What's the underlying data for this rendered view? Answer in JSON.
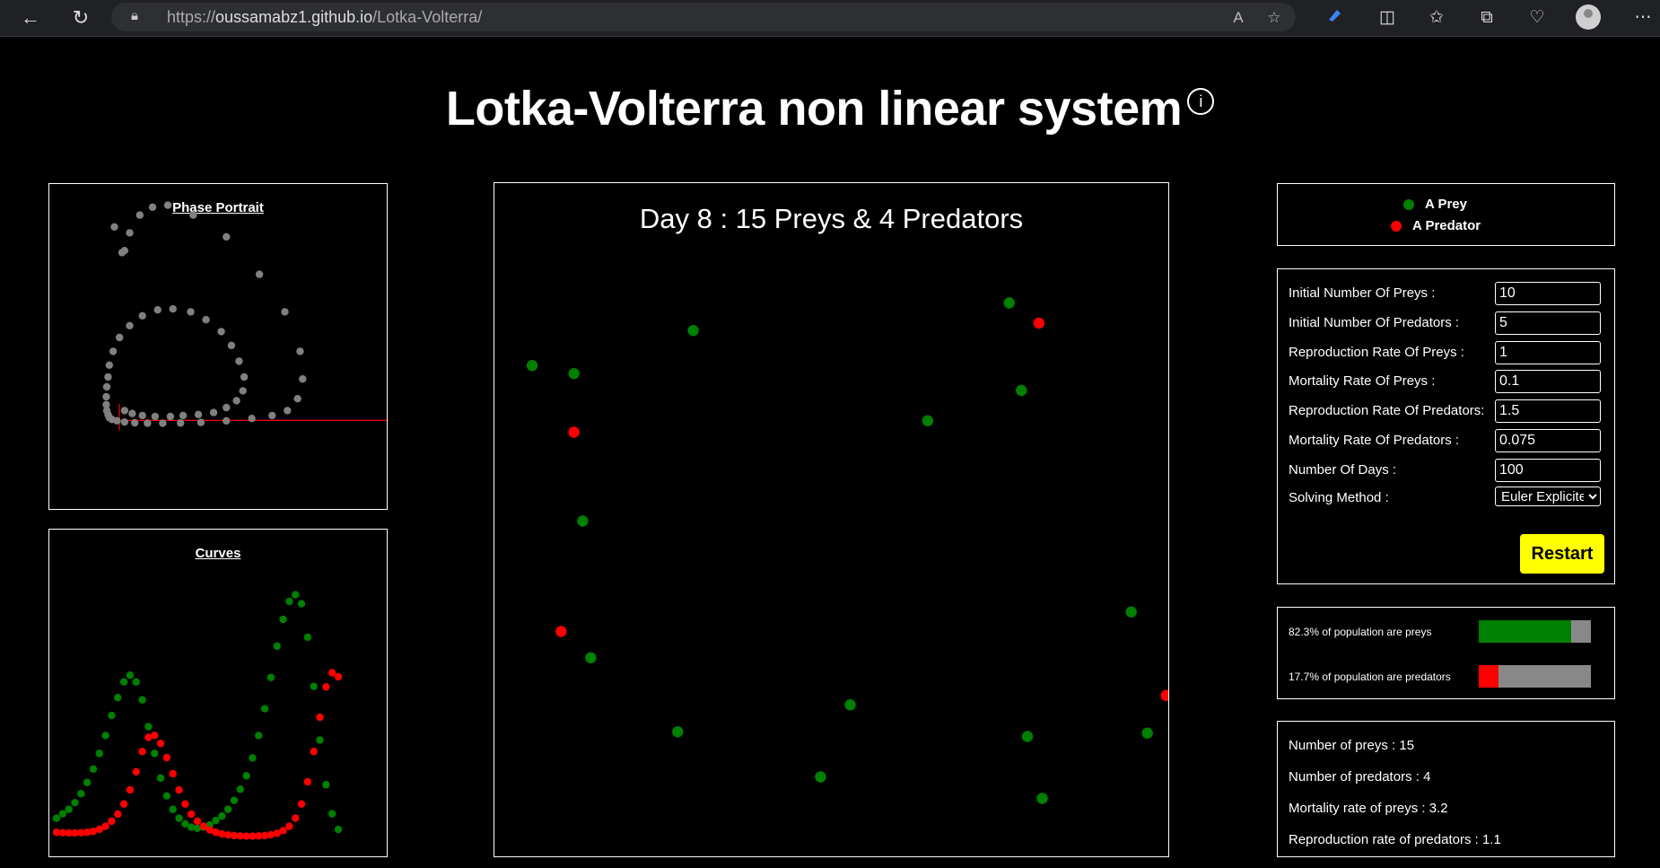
{
  "browser": {
    "url_prefix": "https://",
    "url_host": "oussamabz1.github.io",
    "url_path": "/Lotka-Volterra/"
  },
  "page": {
    "title": "Lotka-Volterra non linear system",
    "info_icon": "i"
  },
  "phase_portrait": {
    "title": "Phase Portrait",
    "points": [
      [
        2.2,
        9.6
      ],
      [
        2.5,
        8.3
      ],
      [
        2.6,
        8.4
      ],
      [
        2.8,
        9.3
      ],
      [
        3.2,
        10.2
      ],
      [
        3.7,
        10.6
      ],
      [
        4.3,
        10.7
      ],
      [
        5.3,
        10.2
      ],
      [
        6.6,
        9.1
      ],
      [
        7.9,
        7.2
      ],
      [
        8.9,
        5.3
      ],
      [
        9.5,
        3.3
      ],
      [
        9.6,
        1.9
      ],
      [
        9.4,
        0.9
      ],
      [
        9.0,
        0.3
      ],
      [
        8.4,
        0.05
      ],
      [
        7.6,
        -0.1
      ],
      [
        6.6,
        -0.22
      ],
      [
        5.6,
        -0.3
      ],
      [
        4.8,
        -0.33
      ],
      [
        4.1,
        -0.34
      ],
      [
        3.5,
        -0.34
      ],
      [
        3.0,
        -0.32
      ],
      [
        2.6,
        -0.28
      ],
      [
        2.3,
        -0.22
      ],
      [
        2.1,
        -0.15
      ],
      [
        2.0,
        -0.05
      ],
      [
        1.95,
        0.1
      ],
      [
        1.9,
        0.3
      ],
      [
        1.88,
        0.6
      ],
      [
        1.88,
        1.0
      ],
      [
        1.9,
        1.5
      ],
      [
        1.95,
        2.0
      ],
      [
        2.0,
        2.6
      ],
      [
        2.15,
        3.3
      ],
      [
        2.4,
        4.0
      ],
      [
        2.8,
        4.6
      ],
      [
        3.3,
        5.1
      ],
      [
        3.9,
        5.4
      ],
      [
        4.5,
        5.45
      ],
      [
        5.2,
        5.3
      ],
      [
        5.8,
        4.9
      ],
      [
        6.4,
        4.3
      ],
      [
        6.8,
        3.6
      ],
      [
        7.1,
        2.8
      ],
      [
        7.3,
        2.0
      ],
      [
        7.25,
        1.3
      ],
      [
        7.0,
        0.8
      ],
      [
        6.6,
        0.45
      ],
      [
        6.1,
        0.2
      ],
      [
        5.5,
        0.1
      ],
      [
        4.9,
        0.05
      ],
      [
        4.4,
        0.0
      ],
      [
        3.8,
        0.0
      ],
      [
        3.3,
        0.05
      ],
      [
        2.9,
        0.15
      ],
      [
        2.6,
        0.3
      ]
    ]
  },
  "curves": {
    "title": "Curves",
    "preys": [
      0.9,
      1.1,
      1.3,
      1.6,
      2.0,
      2.5,
      3.1,
      3.8,
      4.6,
      5.5,
      6.3,
      7.0,
      7.3,
      7.0,
      6.2,
      5.0,
      3.8,
      2.7,
      1.9,
      1.3,
      0.9,
      0.65,
      0.5,
      0.45,
      0.5,
      0.6,
      0.8,
      1.0,
      1.3,
      1.7,
      2.2,
      2.8,
      3.6,
      4.6,
      5.8,
      7.2,
      8.6,
      9.8,
      10.6,
      10.9,
      10.5,
      9.0,
      6.8,
      4.4,
      2.4,
      1.1,
      0.4
    ],
    "predators": [
      0.3,
      0.28,
      0.27,
      0.27,
      0.28,
      0.3,
      0.35,
      0.45,
      0.6,
      0.85,
      1.2,
      1.7,
      2.4,
      3.3,
      4.3,
      5.0,
      5.1,
      4.7,
      4.0,
      3.2,
      2.4,
      1.7,
      1.2,
      0.85,
      0.6,
      0.42,
      0.3,
      0.22,
      0.17,
      0.14,
      0.12,
      0.11,
      0.11,
      0.12,
      0.14,
      0.18,
      0.25,
      0.38,
      0.6,
      1.0,
      1.7,
      2.8,
      4.3,
      6.0,
      7.5,
      8.2,
      8.0
    ]
  },
  "simulation": {
    "title": "Day 8 : 15 Preys & 4 Predators",
    "preys": [
      [
        0.056,
        0.271
      ],
      [
        0.118,
        0.283
      ],
      [
        0.295,
        0.219
      ],
      [
        0.764,
        0.178
      ],
      [
        0.782,
        0.308
      ],
      [
        0.643,
        0.353
      ],
      [
        0.131,
        0.502
      ],
      [
        0.945,
        0.637
      ],
      [
        0.143,
        0.705
      ],
      [
        0.528,
        0.775
      ],
      [
        0.272,
        0.815
      ],
      [
        0.791,
        0.822
      ],
      [
        0.969,
        0.817
      ],
      [
        0.484,
        0.882
      ],
      [
        0.813,
        0.914
      ]
    ],
    "predators": [
      [
        0.808,
        0.208
      ],
      [
        0.118,
        0.37
      ],
      [
        0.099,
        0.666
      ],
      [
        0.997,
        0.761
      ]
    ]
  },
  "legend": {
    "prey_label": "A Prey",
    "predator_label": "A Predator"
  },
  "form": {
    "initial_preys": {
      "label": "Initial Number Of Preys :",
      "value": "10"
    },
    "initial_predators": {
      "label": "Initial Number Of Predators :",
      "value": "5"
    },
    "prey_reproduction": {
      "label": "Reproduction Rate Of Preys :",
      "value": "1"
    },
    "prey_mortality": {
      "label": "Mortality Rate Of Preys :",
      "value": "0.1"
    },
    "predator_reproduction": {
      "label": "Reproduction Rate Of Predators:",
      "value": "1.5"
    },
    "predator_mortality": {
      "label": "Mortality Rate Of Predators :",
      "value": "0.075"
    },
    "days": {
      "label": "Number Of Days :",
      "value": "100"
    },
    "method": {
      "label": "Solving Method :",
      "value": "Euler Explicite"
    },
    "restart_label": "Restart"
  },
  "population": {
    "prey_text": "82.3% of population are preys",
    "prey_fraction": 0.823,
    "predator_text": "17.7% of population are predators",
    "predator_fraction": 0.177
  },
  "stats": {
    "preys": "Number of preys : 15",
    "predators": "Number of predators : 4",
    "prey_mortality": "Mortality rate of preys : 3.2",
    "predator_reproduction": "Reproduction rate of predators : 1.1"
  },
  "colors": {
    "prey": "#008000",
    "predator": "#ff0000",
    "phase": "#808080",
    "bar_bg": "#808080",
    "restart": "#ffff00"
  }
}
